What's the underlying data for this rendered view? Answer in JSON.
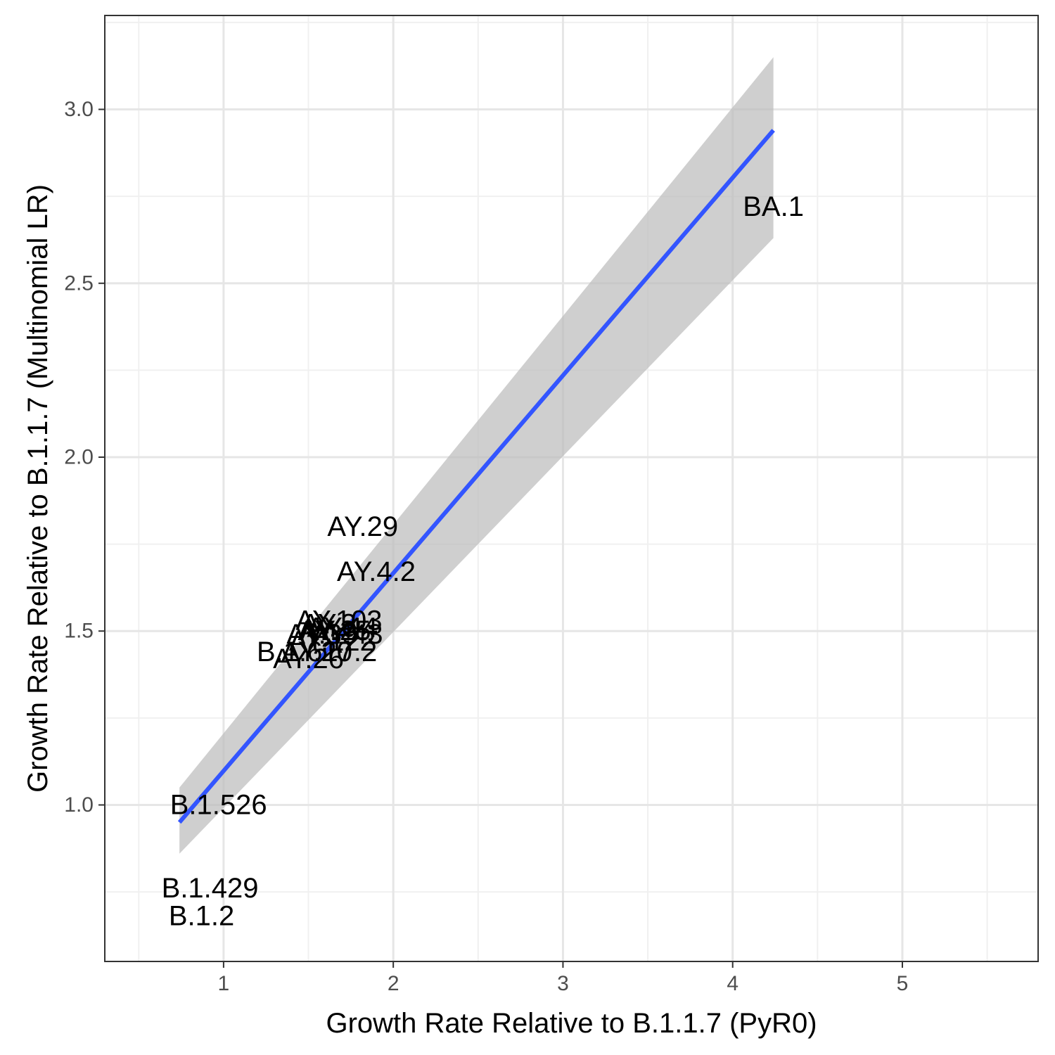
{
  "chart_data": {
    "type": "scatter",
    "title": "",
    "xlabel": "Growth Rate Relative to B.1.1.7 (PyR0)",
    "ylabel": "Growth Rate Relative to B.1.1.7 (Multinomial LR)",
    "xlim": [
      0.3,
      5.8
    ],
    "ylim": [
      0.55,
      3.27
    ],
    "x_ticks": [
      1,
      2,
      3,
      4,
      5
    ],
    "y_ticks": [
      1.0,
      1.5,
      2.0,
      2.5,
      3.0
    ],
    "x_tick_labels": [
      "1",
      "2",
      "3",
      "4",
      "5"
    ],
    "y_tick_labels": [
      "1.0",
      "1.5",
      "2.0",
      "2.5",
      "3.0"
    ],
    "grid": true,
    "legend": "none",
    "colors": {
      "fit_line": "#3355ff",
      "confidence_band": "#bdbdbd",
      "grid_major": "#e6e6e6",
      "grid_minor": "#f0f0f0",
      "panel_border": "#333333",
      "label_text": "#000000"
    },
    "points": [
      {
        "label": "BA.1",
        "x": 4.24,
        "y": 2.72
      },
      {
        "label": "AY.29",
        "x": 1.82,
        "y": 1.8
      },
      {
        "label": "AY.4.2",
        "x": 1.9,
        "y": 1.67
      },
      {
        "label": "AY.103",
        "x": 1.68,
        "y": 1.53
      },
      {
        "label": "AY.3",
        "x": 1.62,
        "y": 1.52
      },
      {
        "label": "AY.44",
        "x": 1.7,
        "y": 1.51
      },
      {
        "label": "AY.25",
        "x": 1.66,
        "y": 1.5
      },
      {
        "label": "AY.4",
        "x": 1.6,
        "y": 1.5
      },
      {
        "label": "AY.43",
        "x": 1.73,
        "y": 1.49
      },
      {
        "label": "AY.39",
        "x": 1.58,
        "y": 1.49
      },
      {
        "label": "AY.122",
        "x": 1.64,
        "y": 1.47
      },
      {
        "label": "AY.20",
        "x": 1.55,
        "y": 1.44
      },
      {
        "label": "B.1.617.2",
        "x": 1.55,
        "y": 1.44
      },
      {
        "label": "AY.26",
        "x": 1.5,
        "y": 1.42
      },
      {
        "label": "B.1.526",
        "x": 0.97,
        "y": 1.0
      },
      {
        "label": "B.1.429",
        "x": 0.92,
        "y": 0.76
      },
      {
        "label": "B.1.2",
        "x": 0.87,
        "y": 0.68
      }
    ],
    "fit": {
      "type": "linear",
      "x_start": 0.74,
      "x_end": 4.24,
      "y_start": 0.95,
      "y_end": 2.94,
      "ci_start": [
        0.86,
        1.05
      ],
      "ci_end": [
        2.63,
        3.15
      ]
    }
  }
}
